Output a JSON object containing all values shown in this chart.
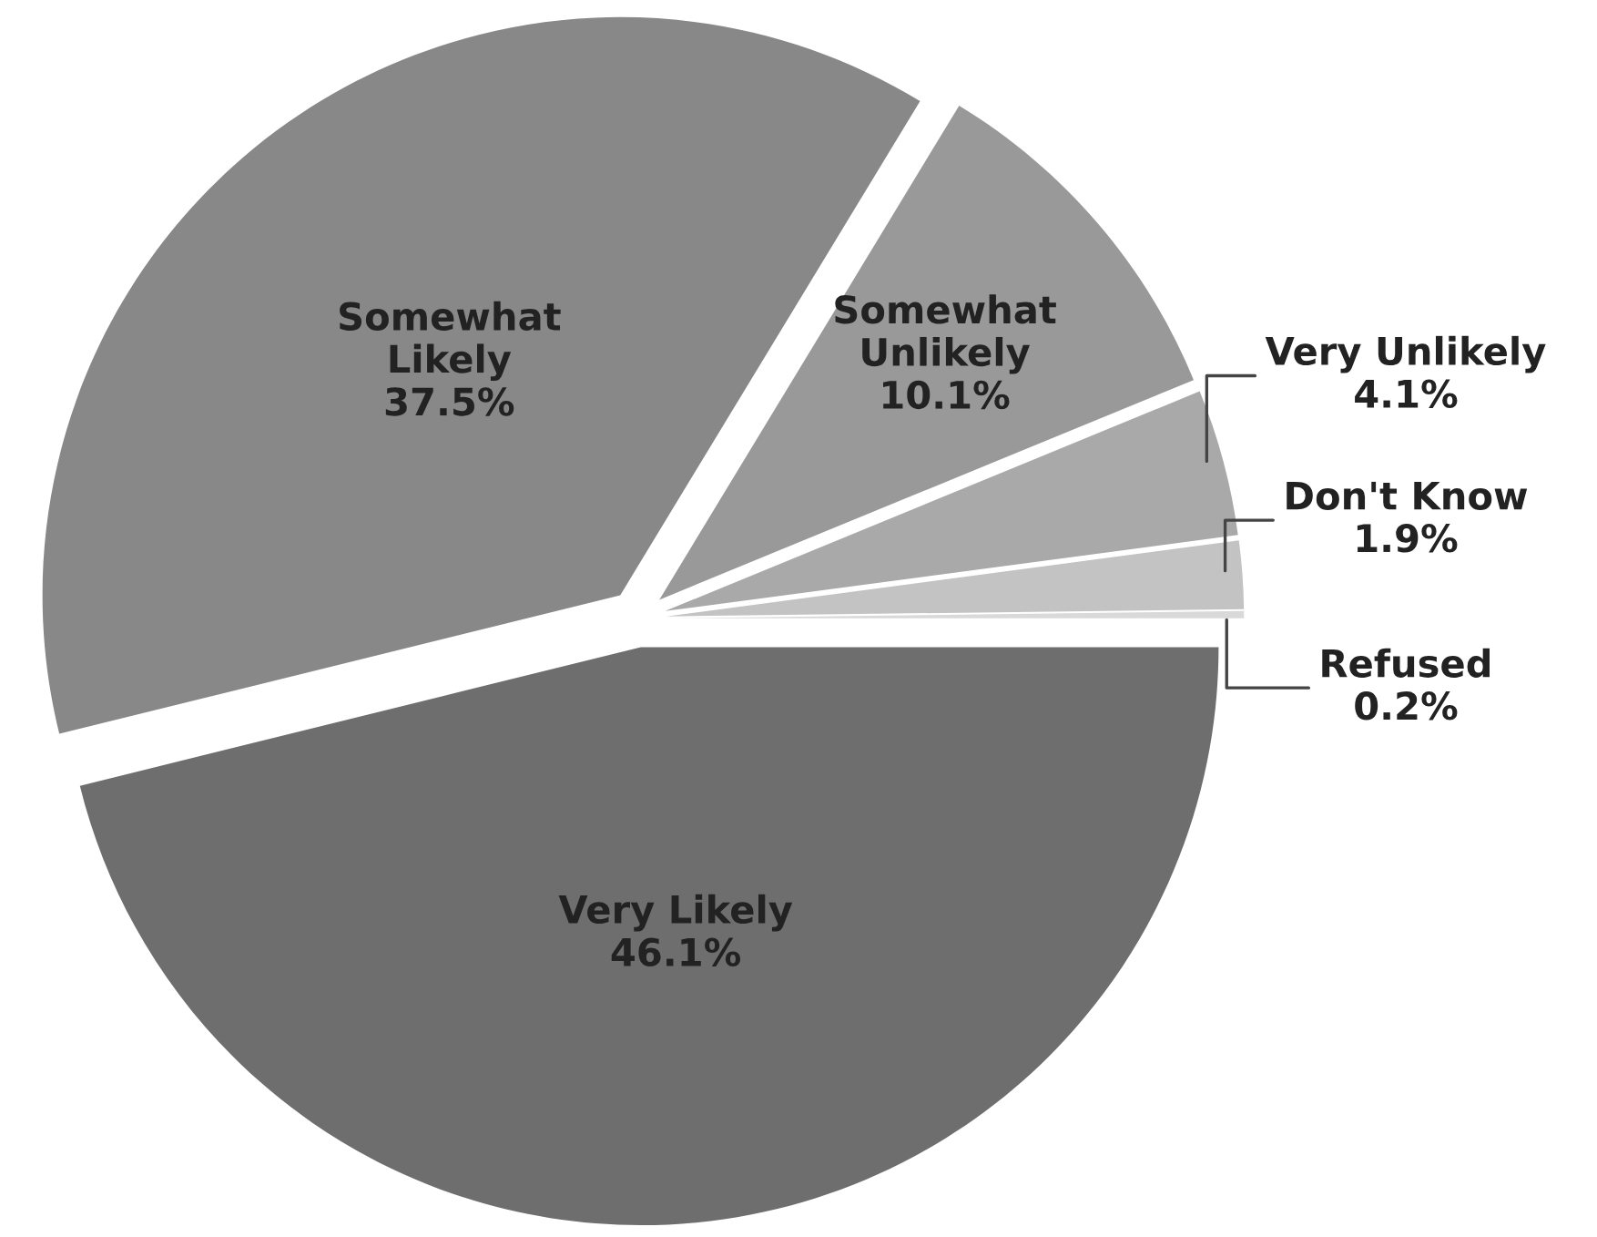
{
  "chart_data": {
    "type": "pie",
    "categories": [
      "Very Likely",
      "Somewhat\nLikely",
      "Somewhat\nUnlikely",
      "Very Unlikely",
      "Don't Know",
      "Refused"
    ],
    "values": [
      46.1,
      37.5,
      10.1,
      4.1,
      1.9,
      0.2
    ],
    "value_labels": [
      "46.1%",
      "37.5%",
      "10.1%",
      "4.1%",
      "1.9%",
      "0.2%"
    ],
    "colors": [
      "#6e6e6e",
      "#888888",
      "#999999",
      "#a9a9a9",
      "#c3c3c3",
      "#d9d9d9"
    ],
    "legend": false
  }
}
